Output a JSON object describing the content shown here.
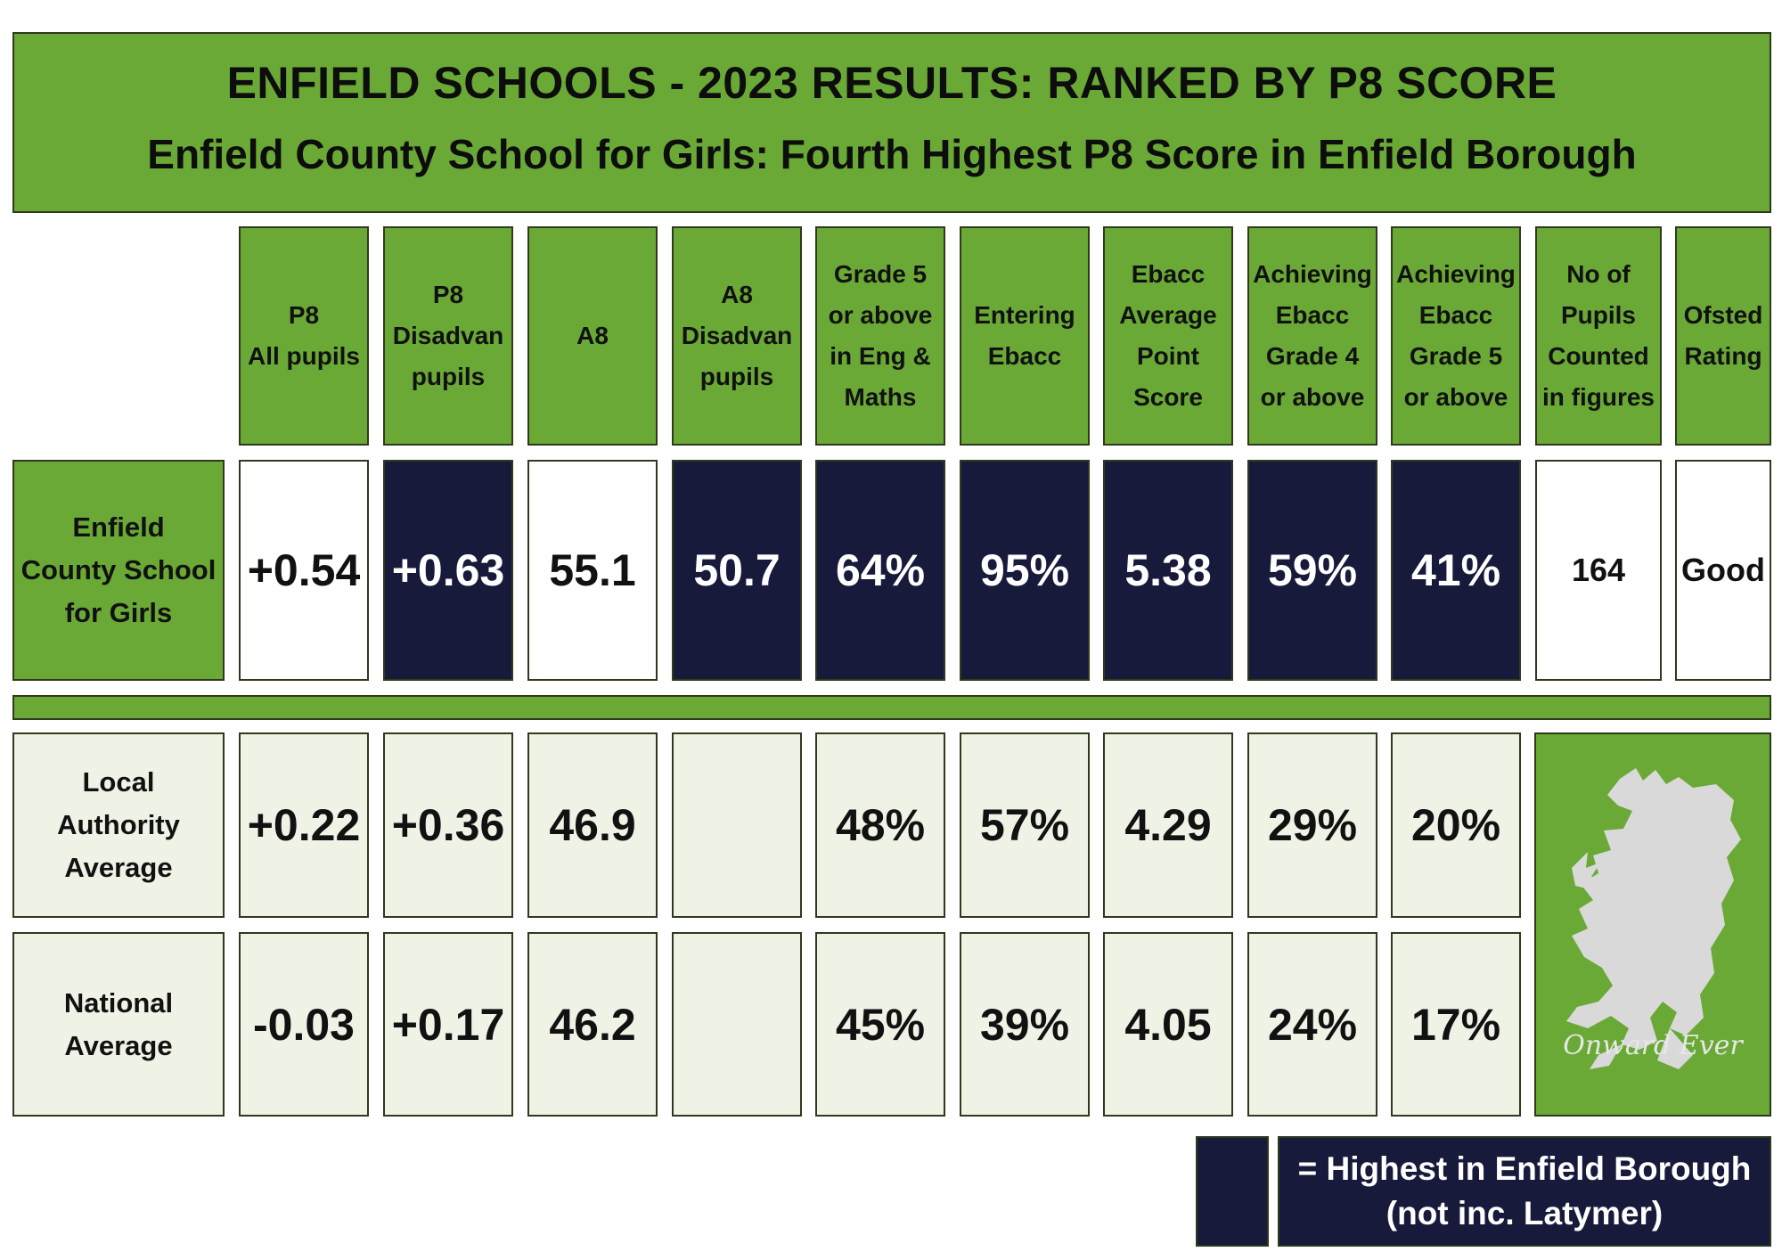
{
  "title": {
    "line1": "ENFIELD SCHOOLS - 2023 RESULTS:  RANKED BY P8 SCORE",
    "line2": "Enfield County School for Girls: Fourth Highest P8 Score in Enfield Borough"
  },
  "headers": [
    "P8\nAll pupils",
    "P8\nDisadvan\npupils",
    "A8",
    "A8\nDisadvan\npupils",
    "Grade 5\nor above\nin Eng &\nMaths",
    "Entering\nEbacc",
    "Ebacc\nAverage\nPoint\nScore",
    "Achieving\nEbacc\nGrade 4\nor above",
    "Achieving\nEbacc\nGrade 5\nor above",
    "No of\nPupils\nCounted\nin figures",
    "Ofsted\nRating"
  ],
  "school": {
    "label": "Enfield\nCounty School\nfor Girls",
    "values": [
      "+0.54",
      "+0.63",
      "55.1",
      "50.7",
      "64%",
      "95%",
      "5.38",
      "59%",
      "41%",
      "164",
      "Good"
    ],
    "highest": [
      false,
      true,
      false,
      true,
      true,
      true,
      true,
      true,
      true,
      false,
      false
    ]
  },
  "la_average": {
    "label": "Local\nAuthority\nAverage",
    "values": [
      "+0.22",
      "+0.36",
      "46.9",
      "",
      "48%",
      "57%",
      "4.29",
      "29%",
      "20%"
    ]
  },
  "national_average": {
    "label": "National\nAverage",
    "values": [
      "-0.03",
      "+0.17",
      "46.2",
      "",
      "45%",
      "39%",
      "4.05",
      "24%",
      "17%"
    ]
  },
  "crest": {
    "icon": "griffin-crest-icon",
    "motto": "Onward Ever"
  },
  "legend": {
    "text": "= Highest in Enfield Borough\n(not inc. Latymer)"
  },
  "colors": {
    "green": "#6aa936",
    "navy": "#181a3c",
    "pale": "#eef3e6",
    "crest": "#d9d9d9"
  }
}
